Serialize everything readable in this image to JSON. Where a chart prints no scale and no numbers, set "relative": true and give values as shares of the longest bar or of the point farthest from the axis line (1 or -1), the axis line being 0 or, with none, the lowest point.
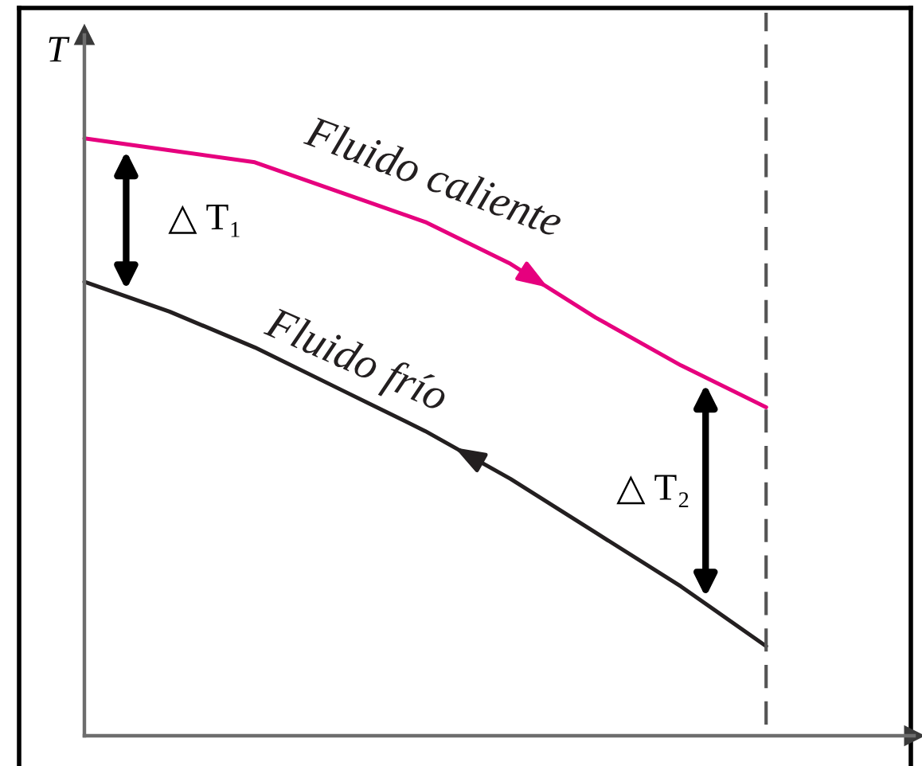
{
  "chart_data": {
    "type": "line",
    "relative": true,
    "ylabel": "T",
    "categories": [
      null,
      null,
      null,
      null,
      null,
      null,
      null,
      null,
      null
    ],
    "series": [
      {
        "name": "Fluido caliente",
        "color": "#e6007e",
        "values": [
          1.0,
          0.98,
          0.96,
          0.91,
          0.86,
          0.79,
          0.7,
          0.62,
          0.55
        ]
      },
      {
        "name": "Fluido frío",
        "color": "#231f20",
        "values": [
          0.76,
          0.71,
          0.65,
          0.58,
          0.51,
          0.43,
          0.34,
          0.25,
          0.15
        ]
      }
    ],
    "annotations": [
      "△ T₁",
      "△ T₂"
    ]
  }
}
